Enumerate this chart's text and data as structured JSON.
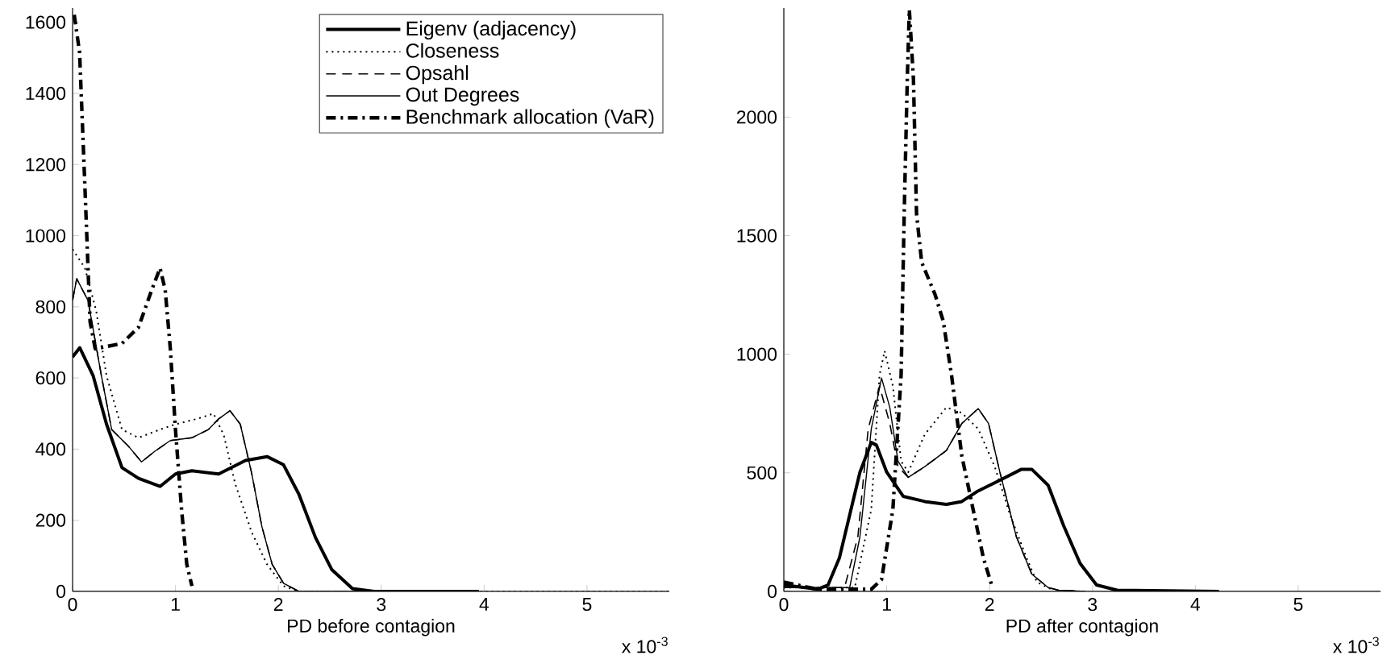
{
  "chart_data": [
    {
      "type": "line",
      "xlabel": "PD before contagion",
      "annotations": [
        "x 10$^{-3}$"
      ],
      "xlim": [
        0,
        5.8
      ],
      "ylim": [
        0,
        1640
      ],
      "xticks": [
        0,
        1,
        2,
        3,
        4,
        5
      ],
      "yticks": [
        0,
        200,
        400,
        600,
        800,
        1000,
        1200,
        1400,
        1600
      ],
      "grid": false,
      "legend": "top right",
      "series": [
        {
          "name": "Eigenv (adjacency)",
          "color": "#000000",
          "line_style": "solid",
          "x": [
            0,
            0.07,
            0.2,
            0.33,
            0.48,
            0.64,
            0.85,
            1.0,
            1.16,
            1.42,
            1.68,
            1.89,
            2.05,
            2.2,
            2.36,
            2.52,
            2.72,
            2.93,
            3.95
          ],
          "values": [
            659,
            685,
            606,
            470,
            348,
            318,
            295,
            330,
            339,
            330,
            368,
            379,
            356,
            273,
            152,
            61,
            8,
            0,
            0
          ]
        },
        {
          "name": "Closeness",
          "color": "#000000",
          "line_style": "dotted",
          "x": [
            0,
            0.12,
            0.23,
            0.33,
            0.48,
            0.64,
            0.85,
            1.0,
            1.21,
            1.37,
            1.47,
            1.58,
            1.74,
            1.89,
            2.05,
            2.2,
            5.8
          ],
          "values": [
            962,
            909,
            788,
            606,
            455,
            432,
            455,
            470,
            485,
            500,
            439,
            303,
            167,
            76,
            15,
            0,
            0
          ]
        },
        {
          "name": "Opsahl",
          "color": "#000000",
          "line_style": "dashed",
          "x": [
            0,
            0.04,
            0.15,
            0.28,
            0.38,
            0.54,
            0.67,
            0.8,
            0.95,
            1.16,
            1.32,
            1.42,
            1.53,
            1.63,
            1.74,
            1.84,
            1.94,
            2.05,
            2.2,
            3.95
          ],
          "values": [
            818,
            879,
            818,
            606,
            455,
            409,
            364,
            394,
            424,
            432,
            455,
            485,
            508,
            470,
            333,
            182,
            76,
            23,
            0,
            0
          ]
        },
        {
          "name": "Out Degrees",
          "color": "#000000",
          "line_style": "solid",
          "x": [
            0,
            0.04,
            0.15,
            0.28,
            0.38,
            0.54,
            0.67,
            0.8,
            0.95,
            1.16,
            1.32,
            1.42,
            1.53,
            1.63,
            1.74,
            1.84,
            1.94,
            2.05,
            2.2,
            3.95
          ],
          "values": [
            818,
            879,
            818,
            606,
            455,
            409,
            364,
            394,
            424,
            432,
            455,
            485,
            508,
            470,
            333,
            182,
            76,
            23,
            0,
            0
          ]
        },
        {
          "name": "Benchmark allocation (VaR)",
          "color": "#000000",
          "line_style": "dashdot",
          "x": [
            0.016,
            0.068,
            0.12,
            0.17,
            0.22,
            0.48,
            0.64,
            0.77,
            0.85,
            0.9,
            0.95,
            1.0,
            1.06,
            1.11,
            1.16
          ],
          "values": [
            1621,
            1515,
            1136,
            758,
            682,
            697,
            742,
            848,
            909,
            848,
            682,
            455,
            227,
            76,
            15
          ]
        }
      ]
    },
    {
      "type": "line",
      "xlabel": "PD after contagion",
      "annotations": [
        "x 10$^{-3}$"
      ],
      "xlim": [
        0,
        5.8
      ],
      "ylim": [
        0,
        2460
      ],
      "xticks": [
        0,
        1,
        2,
        3,
        4,
        5
      ],
      "yticks": [
        0,
        500,
        1000,
        1500,
        2000
      ],
      "grid": false,
      "series": [
        {
          "color": "#000000",
          "line_style": "solid",
          "x": [
            0,
            0.33,
            0.43,
            0.54,
            0.64,
            0.74,
            0.85,
            0.9,
            1.0,
            1.16,
            1.37,
            1.58,
            1.73,
            1.89,
            2.1,
            2.31,
            2.41,
            2.57,
            2.72,
            2.88,
            3.04,
            3.24,
            4.23
          ],
          "values": [
            27,
            9,
            27,
            141,
            322,
            503,
            628,
            617,
            503,
            401,
            379,
            367,
            379,
            424,
            469,
            515,
            515,
            447,
            277,
            118,
            27,
            5,
            0
          ]
        },
        {
          "color": "#000000",
          "line_style": "dotted",
          "x": [
            0,
            0.69,
            0.85,
            0.93,
            0.98,
            1.06,
            1.14,
            1.21,
            1.37,
            1.58,
            1.73,
            1.89,
            2.05,
            2.2,
            2.36,
            2.46,
            2.62
          ],
          "values": [
            16,
            16,
            345,
            912,
            1014,
            866,
            549,
            503,
            662,
            776,
            753,
            685,
            526,
            322,
            141,
            39,
            5
          ]
        },
        {
          "color": "#000000",
          "line_style": "dashed",
          "x": [
            0,
            0.59,
            0.72,
            0.82,
            0.93,
            1.03,
            1.11,
            1.21,
            1.37,
            1.58,
            1.73,
            1.89,
            1.99,
            2.1,
            2.26,
            2.41,
            2.57,
            2.67,
            2.93
          ],
          "values": [
            16,
            16,
            231,
            685,
            866,
            708,
            526,
            481,
            526,
            594,
            708,
            771,
            708,
            503,
            231,
            73,
            16,
            5,
            0
          ]
        },
        {
          "color": "#000000",
          "line_style": "solid",
          "x": [
            0,
            0.64,
            0.74,
            0.85,
            0.95,
            1.03,
            1.11,
            1.21,
            1.37,
            1.58,
            1.73,
            1.89,
            1.99,
            2.1,
            2.26,
            2.41,
            2.57,
            2.67,
            2.93
          ],
          "values": [
            16,
            16,
            231,
            685,
            900,
            776,
            549,
            481,
            526,
            594,
            708,
            771,
            708,
            503,
            231,
            73,
            16,
            5,
            0
          ]
        },
        {
          "color": "#000000",
          "line_style": "dashdot",
          "x": [
            0,
            0.33,
            0.85,
            0.95,
            1.06,
            1.14,
            1.17,
            1.2,
            1.22,
            1.26,
            1.29,
            1.34,
            1.47,
            1.55,
            1.63,
            1.73,
            1.84,
            1.94,
            2.02
          ],
          "values": [
            39,
            9,
            9,
            50,
            345,
            912,
            1592,
            2159,
            2454,
            2159,
            1592,
            1388,
            1252,
            1139,
            912,
            572,
            345,
            141,
            27
          ]
        }
      ]
    }
  ]
}
